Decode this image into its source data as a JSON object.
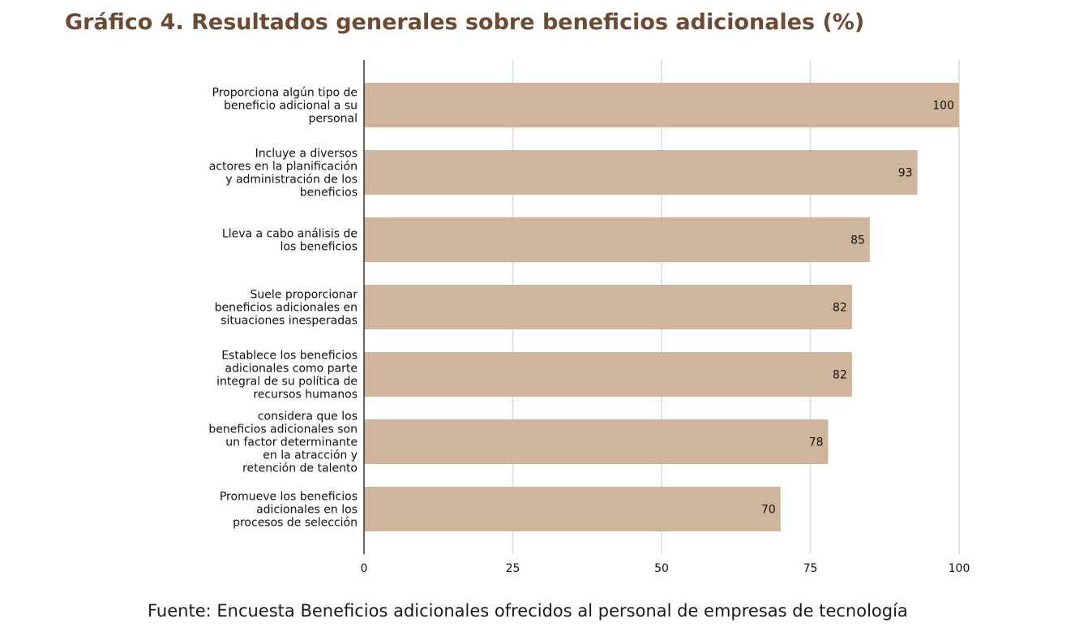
{
  "chart_data": {
    "type": "bar",
    "orientation": "horizontal",
    "title": "Gráfico 4. Resultados generales sobre beneficios adicionales (%)",
    "categories": [
      [
        "Proporciona algún tipo de",
        "beneficio adicional a su",
        "personal"
      ],
      [
        "Incluye a diversos",
        "actores en la planificación",
        "y administración de los",
        "beneficios"
      ],
      [
        "Lleva a cabo análisis de",
        "los beneficios"
      ],
      [
        "Suele proporcionar",
        "beneficios adicionales en",
        "situaciones inesperadas"
      ],
      [
        "Establece los beneficios",
        "adicionales como parte",
        "integral de su política de",
        "recursos humanos"
      ],
      [
        "considera que los",
        "beneficios adicionales son",
        "un factor determinante",
        "en la atracción y",
        "retención de talento"
      ],
      [
        "Promueve los beneficios",
        "adicionales en los",
        "procesos de selección"
      ]
    ],
    "values": [
      100,
      93,
      85,
      82,
      82,
      78,
      70
    ],
    "data_labels": [
      "100",
      "93",
      "85",
      "82",
      "82",
      "78",
      "70"
    ],
    "xlim": [
      0,
      100
    ],
    "xticks": [
      0,
      25,
      50,
      75,
      100
    ],
    "xtick_labels": [
      "0",
      "25",
      "50",
      "75",
      "100"
    ],
    "grid": "vertical",
    "bar_color": "#cfb59c",
    "grid_color": "#d9d9d9",
    "axis_color": "#333333"
  },
  "source": "Fuente: Encuesta Beneficios adicionales ofrecidos al personal de empresas de tecnología",
  "colors": {
    "title": "#6e4a33",
    "text": "#111111"
  }
}
